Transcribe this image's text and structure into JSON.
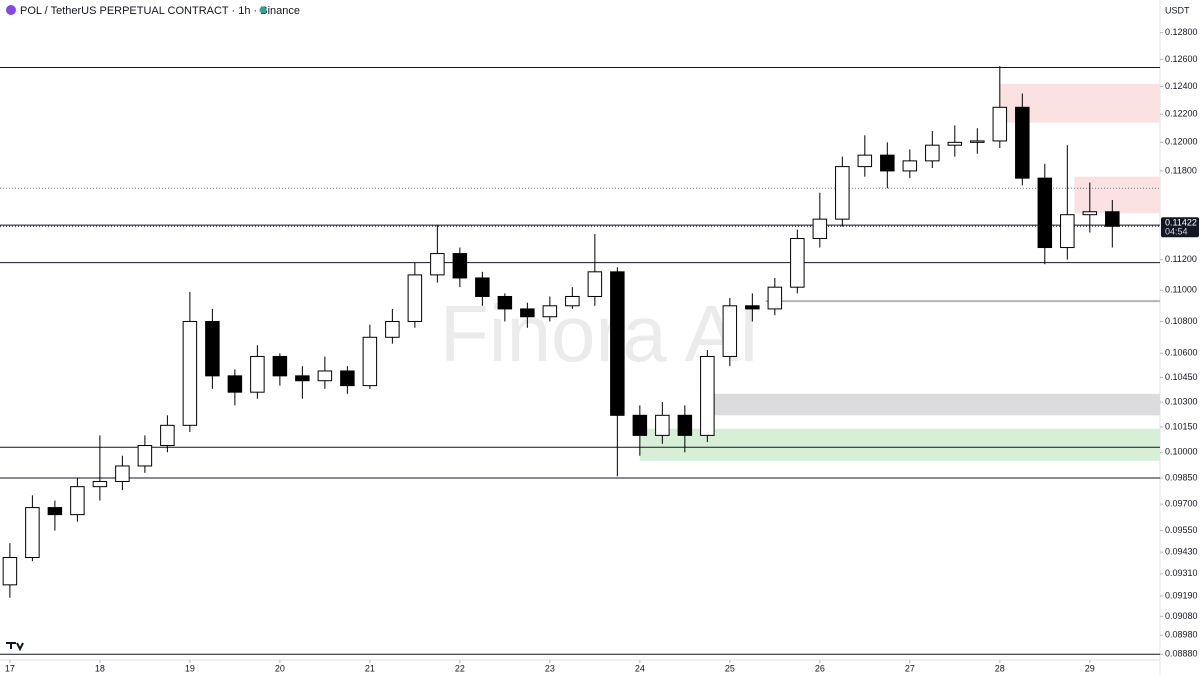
{
  "chart_data": {
    "type": "candlestick",
    "title": "POL / TetherUS PERPETUAL CONTRACT · 1h · Binance",
    "currency": "USDT",
    "watermark": "Finora AI",
    "log_scale": true,
    "x": [
      17,
      17.25,
      17.5,
      17.75,
      18,
      18.25,
      18.5,
      18.75,
      19,
      19.25,
      19.5,
      19.75,
      20,
      20.25,
      20.5,
      20.75,
      21,
      21.25,
      21.5,
      21.75,
      22,
      22.25,
      22.5,
      22.75,
      23,
      23.25,
      23.5,
      23.75,
      24,
      24.25,
      24.5,
      24.75,
      25,
      25.25,
      25.5,
      25.75,
      26,
      26.25,
      26.5,
      26.75,
      27,
      27.25,
      27.5,
      27.75,
      28,
      28.25,
      28.5,
      28.75,
      29,
      29.25
    ],
    "open": [
      0.0925,
      0.094,
      0.0968,
      0.0964,
      0.098,
      0.0983,
      0.0992,
      0.1004,
      0.1016,
      0.108,
      0.1046,
      0.1036,
      0.1058,
      0.1046,
      0.1043,
      0.1049,
      0.104,
      0.107,
      0.108,
      0.111,
      0.1124,
      0.1108,
      0.1096,
      0.1088,
      0.1083,
      0.109,
      0.1096,
      0.1112,
      0.1022,
      0.101,
      0.1022,
      0.101,
      0.1058,
      0.109,
      0.1088,
      0.1102,
      0.1134,
      0.1147,
      0.1183,
      0.1191,
      0.118,
      0.1187,
      0.1198,
      0.12,
      0.1201,
      0.1225,
      0.1175,
      0.1128,
      0.115,
      0.1152
    ],
    "high": [
      0.0948,
      0.0975,
      0.0972,
      0.0985,
      0.101,
      0.0998,
      0.101,
      0.1022,
      0.1099,
      0.1088,
      0.105,
      0.1065,
      0.106,
      0.1052,
      0.1058,
      0.1052,
      0.1078,
      0.1088,
      0.1118,
      0.1143,
      0.1128,
      0.1112,
      0.1098,
      0.1092,
      0.1096,
      0.1102,
      0.1137,
      0.1115,
      0.1028,
      0.103,
      0.1028,
      0.1062,
      0.1095,
      0.1098,
      0.1108,
      0.114,
      0.1165,
      0.119,
      0.1205,
      0.12,
      0.1195,
      0.1208,
      0.1212,
      0.121,
      0.1255,
      0.1235,
      0.1185,
      0.1198,
      0.1172,
      0.116
    ],
    "low": [
      0.0918,
      0.0938,
      0.0955,
      0.096,
      0.0972,
      0.0978,
      0.0988,
      0.1,
      0.1012,
      0.1038,
      0.1028,
      0.1032,
      0.104,
      0.1032,
      0.1038,
      0.1035,
      0.1038,
      0.1066,
      0.1076,
      0.1105,
      0.1102,
      0.109,
      0.108,
      0.1076,
      0.108,
      0.1088,
      0.109,
      0.0986,
      0.0998,
      0.1005,
      0.1,
      0.1006,
      0.1052,
      0.108,
      0.1084,
      0.1098,
      0.1128,
      0.1142,
      0.1176,
      0.1168,
      0.1175,
      0.1182,
      0.119,
      0.1192,
      0.1196,
      0.117,
      0.1117,
      0.112,
      0.1138,
      0.1128
    ],
    "close": [
      0.094,
      0.0968,
      0.0964,
      0.098,
      0.0983,
      0.0992,
      0.1004,
      0.1016,
      0.108,
      0.1046,
      0.1036,
      0.1058,
      0.1046,
      0.1043,
      0.1049,
      0.104,
      0.107,
      0.108,
      0.111,
      0.1124,
      0.1108,
      0.1096,
      0.1088,
      0.1083,
      0.109,
      0.1096,
      0.1112,
      0.1022,
      0.101,
      0.1022,
      0.101,
      0.1058,
      0.109,
      0.1088,
      0.1102,
      0.1134,
      0.1147,
      0.1183,
      0.1191,
      0.118,
      0.1187,
      0.1198,
      0.12,
      0.1201,
      0.1225,
      0.1175,
      0.1128,
      0.115,
      0.1152,
      0.11422
    ],
    "up_color": "#ffffff",
    "down_color": "#000000",
    "last_price": 0.11422,
    "countdown": "04:54",
    "levels": [
      0.1254,
      0.1143,
      0.1118,
      0.1003,
      0.0985,
      0.0888
    ],
    "dotted_levels": [
      0.1168
    ],
    "ray": {
      "value": 0.1093,
      "start": 25.4,
      "color": "#b2b5be"
    },
    "zones": [
      {
        "top": 0.1242,
        "bottom": 0.1214,
        "start": 28.0,
        "color": "#fbe2e2"
      },
      {
        "top": 0.1176,
        "bottom": 0.1151,
        "start": 28.83,
        "color": "#fbe2e2"
      },
      {
        "top": 0.1035,
        "bottom": 0.1022,
        "start": 24.67,
        "color": "#dcdcde"
      },
      {
        "top": 0.1014,
        "bottom": 0.0995,
        "start": 24.0,
        "color": "#d6efd6"
      }
    ],
    "xlim": [
      16.89,
      29.78
    ],
    "xticks": [
      17,
      18,
      19,
      20,
      21,
      22,
      23,
      24,
      25,
      26,
      27,
      28,
      29
    ],
    "ylim": [
      0.0885,
      0.1285
    ],
    "yticks": [
      {
        "value": 0.128,
        "label": "0.12800"
      },
      {
        "value": 0.126,
        "label": "0.12600"
      },
      {
        "value": 0.124,
        "label": "0.12400"
      },
      {
        "value": 0.122,
        "label": "0.12200"
      },
      {
        "value": 0.12,
        "label": "0.12000"
      },
      {
        "value": 0.118,
        "label": "0.11800"
      },
      {
        "value": 0.112,
        "label": "0.11200"
      },
      {
        "value": 0.11,
        "label": "0.11000"
      },
      {
        "value": 0.108,
        "label": "0.10800"
      },
      {
        "value": 0.106,
        "label": "0.10600"
      },
      {
        "value": 0.1045,
        "label": "0.10450"
      },
      {
        "value": 0.103,
        "label": "0.10300"
      },
      {
        "value": 0.1015,
        "label": "0.10150"
      },
      {
        "value": 0.1,
        "label": "0.10000"
      },
      {
        "value": 0.0985,
        "label": "0.09850"
      },
      {
        "value": 0.097,
        "label": "0.09700"
      },
      {
        "value": 0.0955,
        "label": "0.09550"
      },
      {
        "value": 0.0943,
        "label": "0.09430"
      },
      {
        "value": 0.0931,
        "label": "0.09310"
      },
      {
        "value": 0.0919,
        "label": "0.09190"
      },
      {
        "value": 0.0908,
        "label": "0.09080"
      },
      {
        "value": 0.0898,
        "label": "0.08980"
      },
      {
        "value": 0.0888,
        "label": "0.08880"
      }
    ],
    "grid": false
  }
}
